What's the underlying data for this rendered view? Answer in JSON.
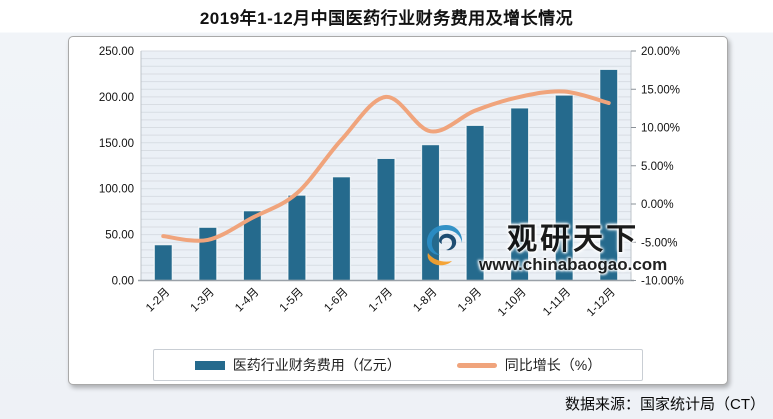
{
  "page": {
    "title": "2019年1-12月中国医药行业财务费用及增长情况",
    "source_note": "数据来源：国家统计局（CT）"
  },
  "watermark": {
    "brand": "观研天下",
    "url": "www.chinabaogao.com",
    "logo_colors": {
      "swirl_blue": "#2b8dc5",
      "swirl_dark": "#14456b",
      "swoosh_orange": "#f6a02d"
    }
  },
  "legend": {
    "bar_label": "医药行业财务费用（亿元）",
    "line_label": "同比增长（%）"
  },
  "chart_data": {
    "type": "bar",
    "subtype": "combo bar+line, dual axis",
    "title": "2019年1-12月中国医药行业财务费用及增长情况",
    "categories": [
      "1-2月",
      "1-3月",
      "1-4月",
      "1-5月",
      "1-6月",
      "1-7月",
      "1-8月",
      "1-9月",
      "1-10月",
      "1-11月",
      "1-12月"
    ],
    "series": [
      {
        "name": "医药行业财务费用（亿元）",
        "type": "bar",
        "axis": "left",
        "color": "#256a8d",
        "values": [
          39,
          58,
          76,
          93,
          113,
          133,
          148,
          169,
          188,
          202,
          230
        ]
      },
      {
        "name": "同比增长（%）",
        "type": "line",
        "axis": "right",
        "color": "#f0a47c",
        "values": [
          -4.2,
          -4.7,
          -1.8,
          1.4,
          8.4,
          14.0,
          9.5,
          12.2,
          14.0,
          14.7,
          13.2
        ]
      }
    ],
    "left_axis": {
      "min": 0,
      "max": 250,
      "ticks": [
        "0.00",
        "50.00",
        "100.00",
        "150.00",
        "200.00",
        "250.00"
      ]
    },
    "right_axis": {
      "min": -10,
      "max": 20,
      "ticks": [
        "-10.00%",
        "-5.00%",
        "0.00%",
        "5.00%",
        "10.00%",
        "15.00%",
        "20.00%"
      ]
    },
    "grid": {
      "on": true,
      "minor_steps": 30,
      "color": "#d8dde3"
    },
    "plot_bg": "#ebf0f6",
    "legend_position": "bottom",
    "x_label_rotation": -45
  }
}
